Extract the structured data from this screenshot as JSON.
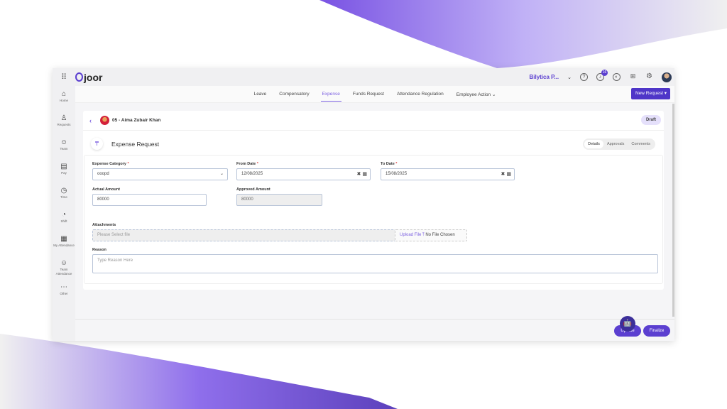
{
  "app": {
    "logo": "joor",
    "org": "Bilytica P...",
    "notifications": "16"
  },
  "sidebar": {
    "items": [
      {
        "label": "Home",
        "icon": "home-icon",
        "glyph": "⌂"
      },
      {
        "label": "Requests",
        "icon": "requests-icon",
        "glyph": "♙"
      },
      {
        "label": "Team",
        "icon": "team-icon",
        "glyph": "☺"
      },
      {
        "label": "Pay",
        "icon": "pay-icon",
        "glyph": "▤"
      },
      {
        "label": "Time",
        "icon": "clock-icon",
        "glyph": "◷"
      },
      {
        "label": "Shift",
        "icon": "shift-icon",
        "glyph": "◔"
      },
      {
        "label": "My Attendance",
        "icon": "calendar-icon",
        "glyph": "▦"
      },
      {
        "label": "Team Attendance",
        "icon": "team-attendance-icon",
        "glyph": "☺"
      },
      {
        "label": "Other",
        "icon": "more-icon",
        "glyph": "⋯"
      }
    ]
  },
  "tabs": [
    {
      "label": "Leave"
    },
    {
      "label": "Compensatory"
    },
    {
      "label": "Expense",
      "active": true
    },
    {
      "label": "Funds Request"
    },
    {
      "label": "Attendance Regulation"
    },
    {
      "label": "Employee Action ⌄"
    }
  ],
  "new_request": "New Request",
  "employee": "05 - Aima Zubair Khan",
  "status": "Draft",
  "title": "Expense Request",
  "segments": [
    "Details",
    "Approvals",
    "Comments"
  ],
  "form": {
    "expense_category": {
      "label": "Expense Category",
      "value": "ooopd"
    },
    "from_date": {
      "label": "From Date",
      "value": "12/08/2025"
    },
    "to_date": {
      "label": "To Date",
      "value": "15/08/2025"
    },
    "actual_amount": {
      "label": "Actual Amount",
      "value": "80000"
    },
    "approved_amount": {
      "label": "Approved Amount",
      "value": "80000"
    },
    "attachments": {
      "label": "Attachments",
      "placeholder": "Please Select file",
      "upload": "Upload File ⤒",
      "file_status": "No File Chosen"
    },
    "reason": {
      "label": "Reason",
      "placeholder": "Type Reason Here"
    }
  },
  "footer": {
    "update": "Update",
    "finalize": "Finalize"
  },
  "colors": {
    "accent": "#5b3fd0"
  }
}
